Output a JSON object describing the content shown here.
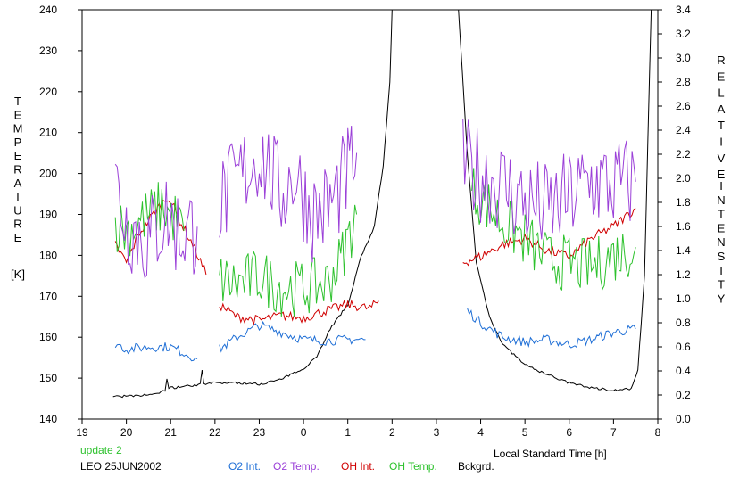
{
  "chart_data": {
    "type": "line",
    "x_axis": {
      "label": "Local Standard Time [h]",
      "range": [
        19,
        8
      ],
      "ticks": [
        "19",
        "20",
        "21",
        "22",
        "23",
        "0",
        "1",
        "2",
        "3",
        "4",
        "5",
        "6",
        "7",
        "8"
      ]
    },
    "y_left": {
      "label_letters": [
        "T",
        "E",
        "M",
        "P",
        "E",
        "R",
        "A",
        "T",
        "U",
        "R",
        "E"
      ],
      "unit": "[K]",
      "range": [
        140,
        240
      ],
      "ticks": [
        "140",
        "150",
        "160",
        "170",
        "180",
        "190",
        "200",
        "210",
        "220",
        "230",
        "240"
      ]
    },
    "y_right": {
      "label_letters_1": [
        "R",
        "E",
        "L",
        "A",
        "T",
        "I",
        "V",
        "E"
      ],
      "label_letters_2": [
        "I",
        "N",
        "T",
        "E",
        "N",
        "S",
        "I",
        "T",
        "Y"
      ],
      "range": [
        0.0,
        3.4
      ],
      "ticks": [
        "0.0",
        "0.2",
        "0.4",
        "0.6",
        "0.8",
        "1.0",
        "1.2",
        "1.4",
        "1.6",
        "1.8",
        "2.0",
        "2.2",
        "2.4",
        "2.6",
        "2.8",
        "3.0",
        "3.2",
        "3.4"
      ]
    },
    "update_label": "update 2",
    "station_date": "LEO 25JUN2002",
    "legend": [
      {
        "name": "O2 Int.",
        "color": "#1f6fd6"
      },
      {
        "name": "O2 Temp.",
        "color": "#9b40d8"
      },
      {
        "name": "OH Int.",
        "color": "#d00000"
      },
      {
        "name": "OH Temp.",
        "color": "#2ec22e"
      },
      {
        "name": "Bckgrd.",
        "color": "#000000"
      }
    ],
    "series": [
      {
        "name": "O2 Temp.",
        "axis": "left",
        "color": "#9b40d8",
        "noise": 12,
        "segments": [
          [
            [
              19.75,
              198
            ],
            [
              20.0,
              188
            ],
            [
              20.5,
              183
            ],
            [
              20.9,
              190
            ],
            [
              21.2,
              185
            ],
            [
              21.6,
              187
            ]
          ],
          [
            [
              22.1,
              192
            ],
            [
              22.5,
              198
            ],
            [
              23.0,
              205
            ],
            [
              23.5,
              195
            ],
            [
              23.8,
              200
            ],
            [
              24.2,
              190
            ],
            [
              24.6,
              192
            ],
            [
              25.0,
              200
            ],
            [
              25.2,
              205
            ]
          ],
          [
            [
              27.6,
              202
            ],
            [
              28.0,
              200
            ],
            [
              28.5,
              197
            ],
            [
              29.0,
              193
            ],
            [
              29.5,
              191
            ],
            [
              30.0,
              194
            ],
            [
              30.5,
              198
            ],
            [
              31.0,
              197
            ],
            [
              31.5,
              198
            ]
          ]
        ]
      },
      {
        "name": "OH Temp.",
        "axis": "left",
        "color": "#2ec22e",
        "noise": 7,
        "segments": [
          [
            [
              19.75,
              188
            ],
            [
              20.0,
              186
            ],
            [
              20.4,
              189
            ],
            [
              20.8,
              192
            ],
            [
              21.1,
              189
            ],
            [
              21.3,
              186
            ]
          ],
          [
            [
              22.1,
              174
            ],
            [
              22.5,
              173
            ],
            [
              23.0,
              175
            ],
            [
              23.5,
              172
            ],
            [
              24.0,
              172
            ],
            [
              24.5,
              173
            ],
            [
              24.8,
              178
            ],
            [
              25.2,
              190
            ]
          ],
          [
            [
              27.8,
              196
            ],
            [
              28.1,
              193
            ],
            [
              28.5,
              188
            ],
            [
              29.0,
              184
            ],
            [
              29.5,
              179
            ],
            [
              30.0,
              178
            ],
            [
              30.5,
              177
            ],
            [
              31.0,
              180
            ],
            [
              31.5,
              182
            ]
          ]
        ]
      },
      {
        "name": "OH Int.",
        "axis": "right",
        "color": "#d00000",
        "noise": 0.04,
        "segments": [
          [
            [
              19.75,
              1.45
            ],
            [
              20.0,
              1.3
            ],
            [
              20.3,
              1.55
            ],
            [
              20.7,
              1.75
            ],
            [
              20.95,
              1.85
            ],
            [
              21.2,
              1.65
            ],
            [
              21.5,
              1.45
            ],
            [
              21.8,
              1.2
            ]
          ],
          [
            [
              22.1,
              0.95
            ],
            [
              22.5,
              0.85
            ],
            [
              23.0,
              0.82
            ],
            [
              23.5,
              0.86
            ],
            [
              24.0,
              0.84
            ],
            [
              24.5,
              0.9
            ],
            [
              25.0,
              0.95
            ],
            [
              25.5,
              0.92
            ],
            [
              25.7,
              0.98
            ]
          ],
          [
            [
              27.6,
              1.3
            ],
            [
              28.0,
              1.35
            ],
            [
              28.5,
              1.45
            ],
            [
              29.0,
              1.5
            ],
            [
              29.5,
              1.4
            ],
            [
              30.0,
              1.35
            ],
            [
              30.5,
              1.5
            ],
            [
              31.0,
              1.6
            ],
            [
              31.5,
              1.75
            ]
          ]
        ]
      },
      {
        "name": "O2 Int.",
        "axis": "right",
        "color": "#1f6fd6",
        "noise": 0.04,
        "segments": [
          [
            [
              19.75,
              0.63
            ],
            [
              20.0,
              0.58
            ],
            [
              20.5,
              0.6
            ],
            [
              21.0,
              0.6
            ],
            [
              21.3,
              0.55
            ],
            [
              21.6,
              0.5
            ]
          ],
          [
            [
              22.1,
              0.58
            ],
            [
              22.5,
              0.68
            ],
            [
              23.0,
              0.78
            ],
            [
              23.5,
              0.72
            ],
            [
              24.0,
              0.66
            ],
            [
              24.5,
              0.65
            ],
            [
              25.0,
              0.66
            ],
            [
              25.4,
              0.66
            ]
          ],
          [
            [
              27.7,
              0.9
            ],
            [
              28.0,
              0.8
            ],
            [
              28.5,
              0.68
            ],
            [
              29.0,
              0.64
            ],
            [
              29.5,
              0.66
            ],
            [
              30.0,
              0.62
            ],
            [
              30.5,
              0.66
            ],
            [
              31.0,
              0.72
            ],
            [
              31.5,
              0.75
            ]
          ]
        ]
      },
      {
        "name": "Bckgrd.",
        "axis": "right",
        "color": "#000000",
        "noise": 0.01,
        "segments": [
          [
            [
              19.7,
              0.19
            ],
            [
              20.2,
              0.19
            ],
            [
              20.7,
              0.21
            ],
            [
              21.0,
              0.26
            ],
            [
              21.5,
              0.28
            ],
            [
              22.0,
              0.3
            ],
            [
              22.5,
              0.3
            ],
            [
              23.0,
              0.29
            ],
            [
              23.5,
              0.33
            ],
            [
              24.0,
              0.42
            ],
            [
              24.3,
              0.52
            ],
            [
              24.6,
              0.75
            ],
            [
              25.0,
              0.95
            ],
            [
              25.3,
              1.35
            ],
            [
              25.6,
              1.6
            ],
            [
              25.8,
              2.1
            ],
            [
              25.95,
              2.8
            ],
            [
              26.0,
              3.4
            ]
          ],
          [
            [
              27.5,
              3.4
            ],
            [
              27.7,
              2.2
            ],
            [
              27.9,
              1.3
            ],
            [
              28.2,
              0.85
            ],
            [
              28.5,
              0.62
            ],
            [
              29.0,
              0.45
            ],
            [
              29.5,
              0.37
            ],
            [
              30.0,
              0.3
            ],
            [
              30.5,
              0.26
            ],
            [
              31.0,
              0.24
            ],
            [
              31.4,
              0.25
            ],
            [
              31.55,
              0.4
            ],
            [
              31.7,
              1.2
            ],
            [
              31.85,
              3.4
            ]
          ]
        ]
      }
    ]
  }
}
